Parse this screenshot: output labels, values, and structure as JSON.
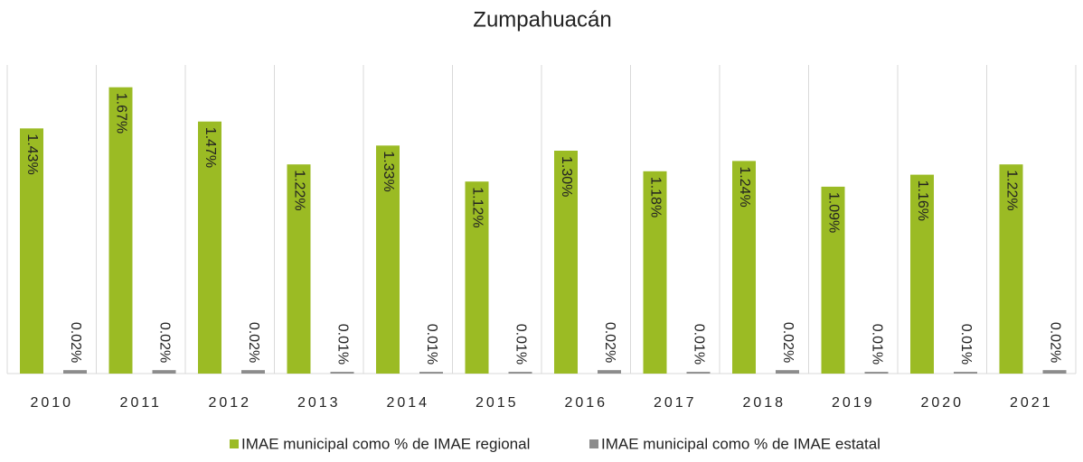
{
  "chart_data": {
    "type": "bar",
    "title": "Zumpahuacán",
    "categories": [
      "2010",
      "2011",
      "2012",
      "2013",
      "2014",
      "2015",
      "2016",
      "2017",
      "2018",
      "2019",
      "2020",
      "2021"
    ],
    "series": [
      {
        "name": "IMAE municipal como % de IMAE regional",
        "color": "#9bbb24",
        "values": [
          1.43,
          1.67,
          1.47,
          1.22,
          1.33,
          1.12,
          1.3,
          1.18,
          1.24,
          1.09,
          1.16,
          1.22
        ],
        "value_labels": [
          "1.43%",
          "1.67%",
          "1.47%",
          "1.22%",
          "1.33%",
          "1.12%",
          "1.30%",
          "1.18%",
          "1.24%",
          "1.09%",
          "1.16%",
          "1.22%"
        ]
      },
      {
        "name": "IMAE municipal como % de IMAE estatal",
        "color": "#8c8c8c",
        "values": [
          0.02,
          0.02,
          0.02,
          0.01,
          0.01,
          0.01,
          0.02,
          0.01,
          0.02,
          0.01,
          0.01,
          0.02
        ],
        "value_labels": [
          "0.02%",
          "0.02%",
          "0.02%",
          "0.01%",
          "0.01%",
          "0.01%",
          "0.02%",
          "0.01%",
          "0.02%",
          "0.01%",
          "0.01%",
          "0.02%"
        ]
      }
    ],
    "ylim": [
      0,
      1.8
    ],
    "legend": "bottom"
  }
}
